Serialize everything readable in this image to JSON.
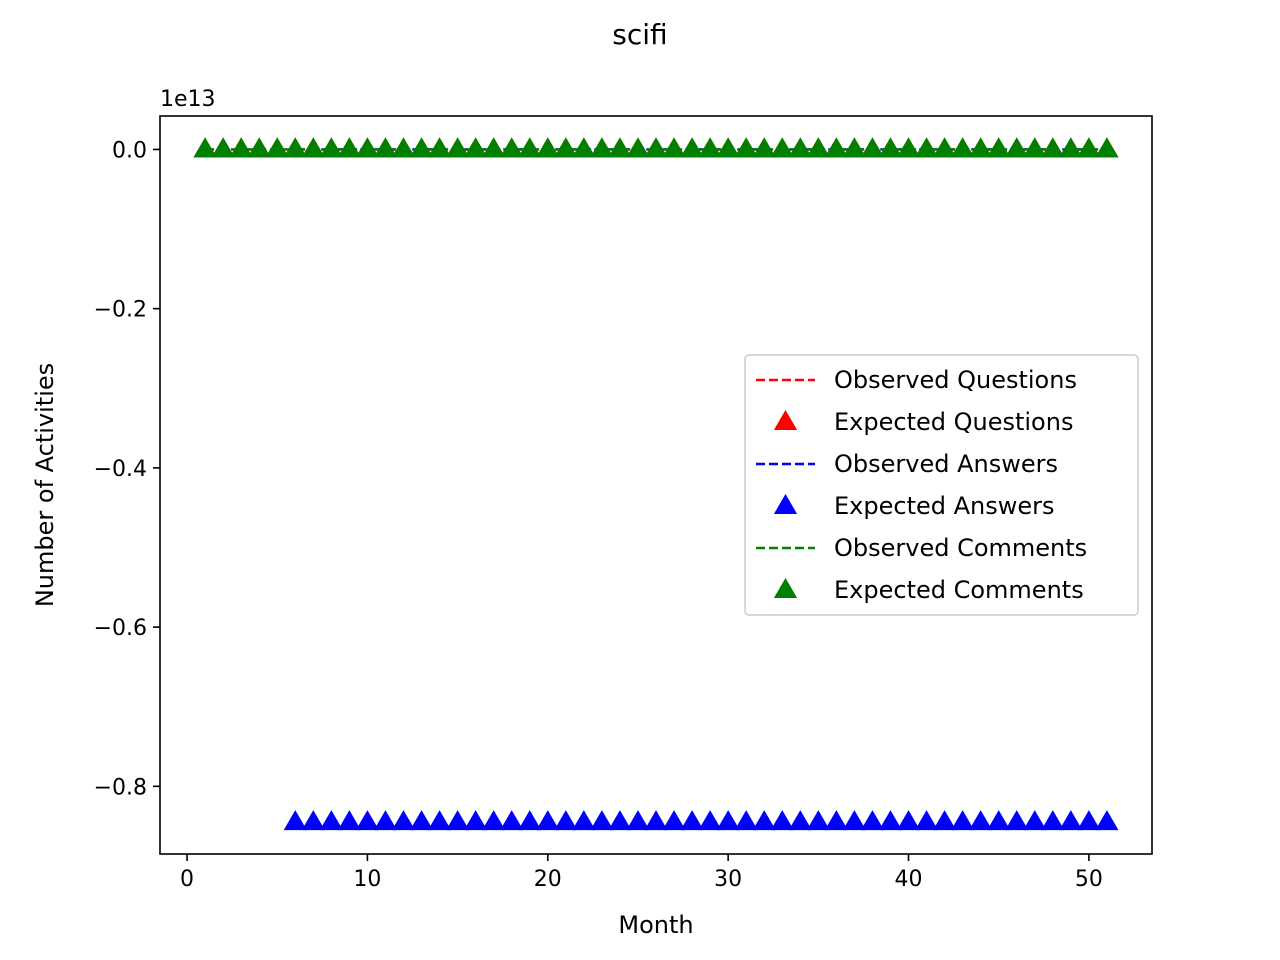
{
  "chart_data": {
    "type": "line",
    "title": "scifi",
    "xlabel": "Month",
    "ylabel": "Number of Activities",
    "offset_label": "1e13",
    "y_scale_factor": 10000000000000.0,
    "xlim": [
      -1.5,
      53.5
    ],
    "ylim": [
      -0.885,
      0.042
    ],
    "x_ticks": [
      0,
      10,
      20,
      30,
      40,
      50
    ],
    "x_tick_labels": [
      "0",
      "10",
      "20",
      "30",
      "40",
      "50"
    ],
    "y_ticks": [
      0.0,
      -0.2,
      -0.4,
      -0.6,
      -0.8
    ],
    "y_tick_labels": [
      "0.0",
      "−0.2",
      "−0.4",
      "−0.6",
      "−0.8"
    ],
    "grid": false,
    "legend_position": "center-right",
    "series": [
      {
        "name": "Observed Questions",
        "style": "dashed",
        "color": "#ff0000",
        "x_start": 1,
        "x_end": 51,
        "value": 0.0
      },
      {
        "name": "Expected Questions",
        "style": "triangle",
        "color": "#ff0000",
        "x_start": 1,
        "x_end": 51,
        "value": 0.0
      },
      {
        "name": "Observed Answers",
        "style": "dashed",
        "color": "#0000ff",
        "x_start": 6,
        "x_end": 51,
        "value": 0.0
      },
      {
        "name": "Expected Answers",
        "style": "triangle",
        "color": "#0000ff",
        "x_start": 6,
        "x_end": 51,
        "value": -0.845
      },
      {
        "name": "Observed Comments",
        "style": "dashed",
        "color": "#008000",
        "x_start": 1,
        "x_end": 51,
        "value": 0.0
      },
      {
        "name": "Expected Comments",
        "style": "triangle",
        "color": "#008000",
        "x_start": 1,
        "x_end": 51,
        "value": 0.0
      }
    ]
  }
}
